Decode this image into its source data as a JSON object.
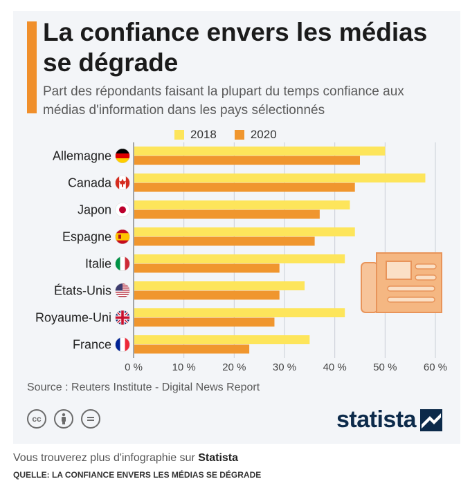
{
  "title": "La confiance envers les médias se dégrade",
  "subtitle": "Part des répondants faisant la plupart du temps confiance aux médias d'information dans les pays sélectionnés",
  "source": "Source : Reuters Institute - Digital News Report",
  "brand": "statista",
  "license_icons": [
    "cc-icon",
    "attribution-icon",
    "no-derivatives-icon"
  ],
  "footer": {
    "prefix": "Vous trouverez plus d'infographie sur",
    "link": "Statista",
    "caption": "QUELLE: LA CONFIANCE ENVERS LES MÉDIAS SE DÉGRADE"
  },
  "colors": {
    "series_2018": "#fde55b",
    "series_2020": "#f0962e",
    "accent": "#f08f2b",
    "brand": "#0c2a4a"
  },
  "chart_data": {
    "type": "bar",
    "orientation": "horizontal",
    "title": "La confiance envers les médias se dégrade",
    "subtitle": "Part des répondants faisant la plupart du temps confiance aux médias d'information dans les pays sélectionnés",
    "categories": [
      "Allemagne",
      "Canada",
      "Japon",
      "Espagne",
      "Italie",
      "États-Unis",
      "Royaume-Uni",
      "France"
    ],
    "flags": [
      "germany-flag-icon",
      "canada-flag-icon",
      "japan-flag-icon",
      "spain-flag-icon",
      "italy-flag-icon",
      "usa-flag-icon",
      "uk-flag-icon",
      "france-flag-icon"
    ],
    "series": [
      {
        "name": "2018",
        "values": [
          50,
          58,
          43,
          44,
          42,
          34,
          42,
          35
        ]
      },
      {
        "name": "2020",
        "values": [
          45,
          44,
          37,
          36,
          29,
          29,
          28,
          23
        ]
      }
    ],
    "xlim": [
      0,
      60
    ],
    "xticks": [
      0,
      10,
      20,
      30,
      40,
      50,
      60
    ],
    "xtick_labels": [
      "0 %",
      "10 %",
      "20 %",
      "30 %",
      "40 %",
      "50 %",
      "60 %"
    ],
    "grid": true,
    "legend_position": "top",
    "decoration": "newspaper-icon"
  }
}
